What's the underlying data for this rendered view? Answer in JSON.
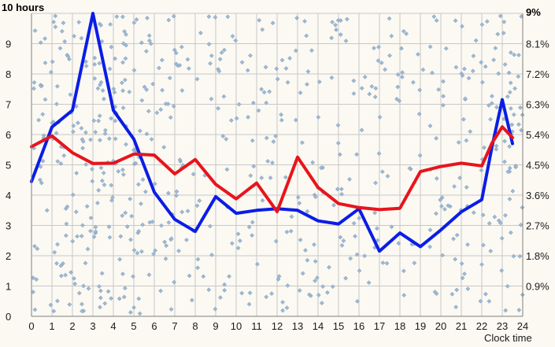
{
  "chart_data": {
    "type": "line",
    "title": "",
    "xlabel": "Clock time",
    "ylabel_left": "10 hours",
    "ylabel_right": "9%",
    "grid": true,
    "x": [
      0,
      1,
      2,
      3,
      4,
      5,
      6,
      7,
      8,
      9,
      10,
      11,
      12,
      13,
      14,
      15,
      16,
      17,
      18,
      19,
      20,
      21,
      22,
      23,
      24
    ],
    "x_ticks": [
      "0",
      "1",
      "2",
      "3",
      "4",
      "5",
      "6",
      "7",
      "8",
      "9",
      "10",
      "11",
      "12",
      "13",
      "14",
      "15",
      "16",
      "17",
      "18",
      "19",
      "20",
      "21",
      "22",
      "23",
      "24"
    ],
    "xlim": [
      0,
      24
    ],
    "y_left_ticks": [
      "0",
      "1",
      "2",
      "3",
      "4",
      "5",
      "6",
      "7",
      "8",
      "9"
    ],
    "ylim_left": [
      0,
      10
    ],
    "y_right_ticks": [
      "0.9%",
      "1.8%",
      "2.7%",
      "3.6%",
      "4.5%",
      "5.4%",
      "6.3%",
      "7.2%",
      "8.1%"
    ],
    "ylim_right": [
      0,
      9
    ],
    "colors": {
      "blue_series": "#0a1de6",
      "red_series": "#e8141c",
      "scatter": "#9db8d4",
      "grid": "#c8c8c8"
    },
    "series": [
      {
        "axis": "left",
        "color": "#0a1de6",
        "x": [
          0,
          1,
          2,
          3,
          4,
          5,
          6,
          7,
          8,
          9,
          10,
          11,
          12,
          13,
          14,
          15,
          16,
          17,
          18,
          19,
          20,
          21,
          22,
          22.5,
          23,
          23.5
        ],
        "values": [
          4.45,
          6.25,
          6.8,
          10.0,
          6.8,
          5.85,
          4.1,
          3.2,
          2.8,
          3.95,
          3.4,
          3.5,
          3.55,
          3.5,
          3.15,
          3.05,
          3.55,
          2.15,
          2.75,
          2.3,
          2.85,
          3.45,
          3.85,
          5.6,
          7.15,
          5.7
        ]
      },
      {
        "axis": "right",
        "color": "#e8141c",
        "x": [
          0,
          1,
          2,
          3,
          4,
          5,
          6,
          7,
          8,
          9,
          10,
          11,
          12,
          13,
          14,
          15,
          16,
          17,
          18,
          19,
          20,
          21,
          22,
          22.5,
          23,
          23.5
        ],
        "values": [
          5.04,
          5.36,
          4.86,
          4.54,
          4.55,
          4.82,
          4.79,
          4.23,
          4.66,
          3.92,
          3.49,
          3.96,
          3.11,
          4.73,
          3.83,
          3.35,
          3.23,
          3.17,
          3.21,
          4.3,
          4.45,
          4.55,
          4.47,
          5.15,
          5.63,
          5.31
        ]
      }
    ]
  }
}
